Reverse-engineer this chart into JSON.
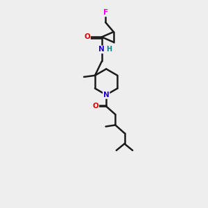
{
  "background_color": "#eeeeee",
  "bond_color": "#1a1a1a",
  "atom_colors": {
    "F": "#ee00ee",
    "O": "#dd0000",
    "N": "#2200cc",
    "H": "#008888",
    "C": "#1a1a1a"
  }
}
